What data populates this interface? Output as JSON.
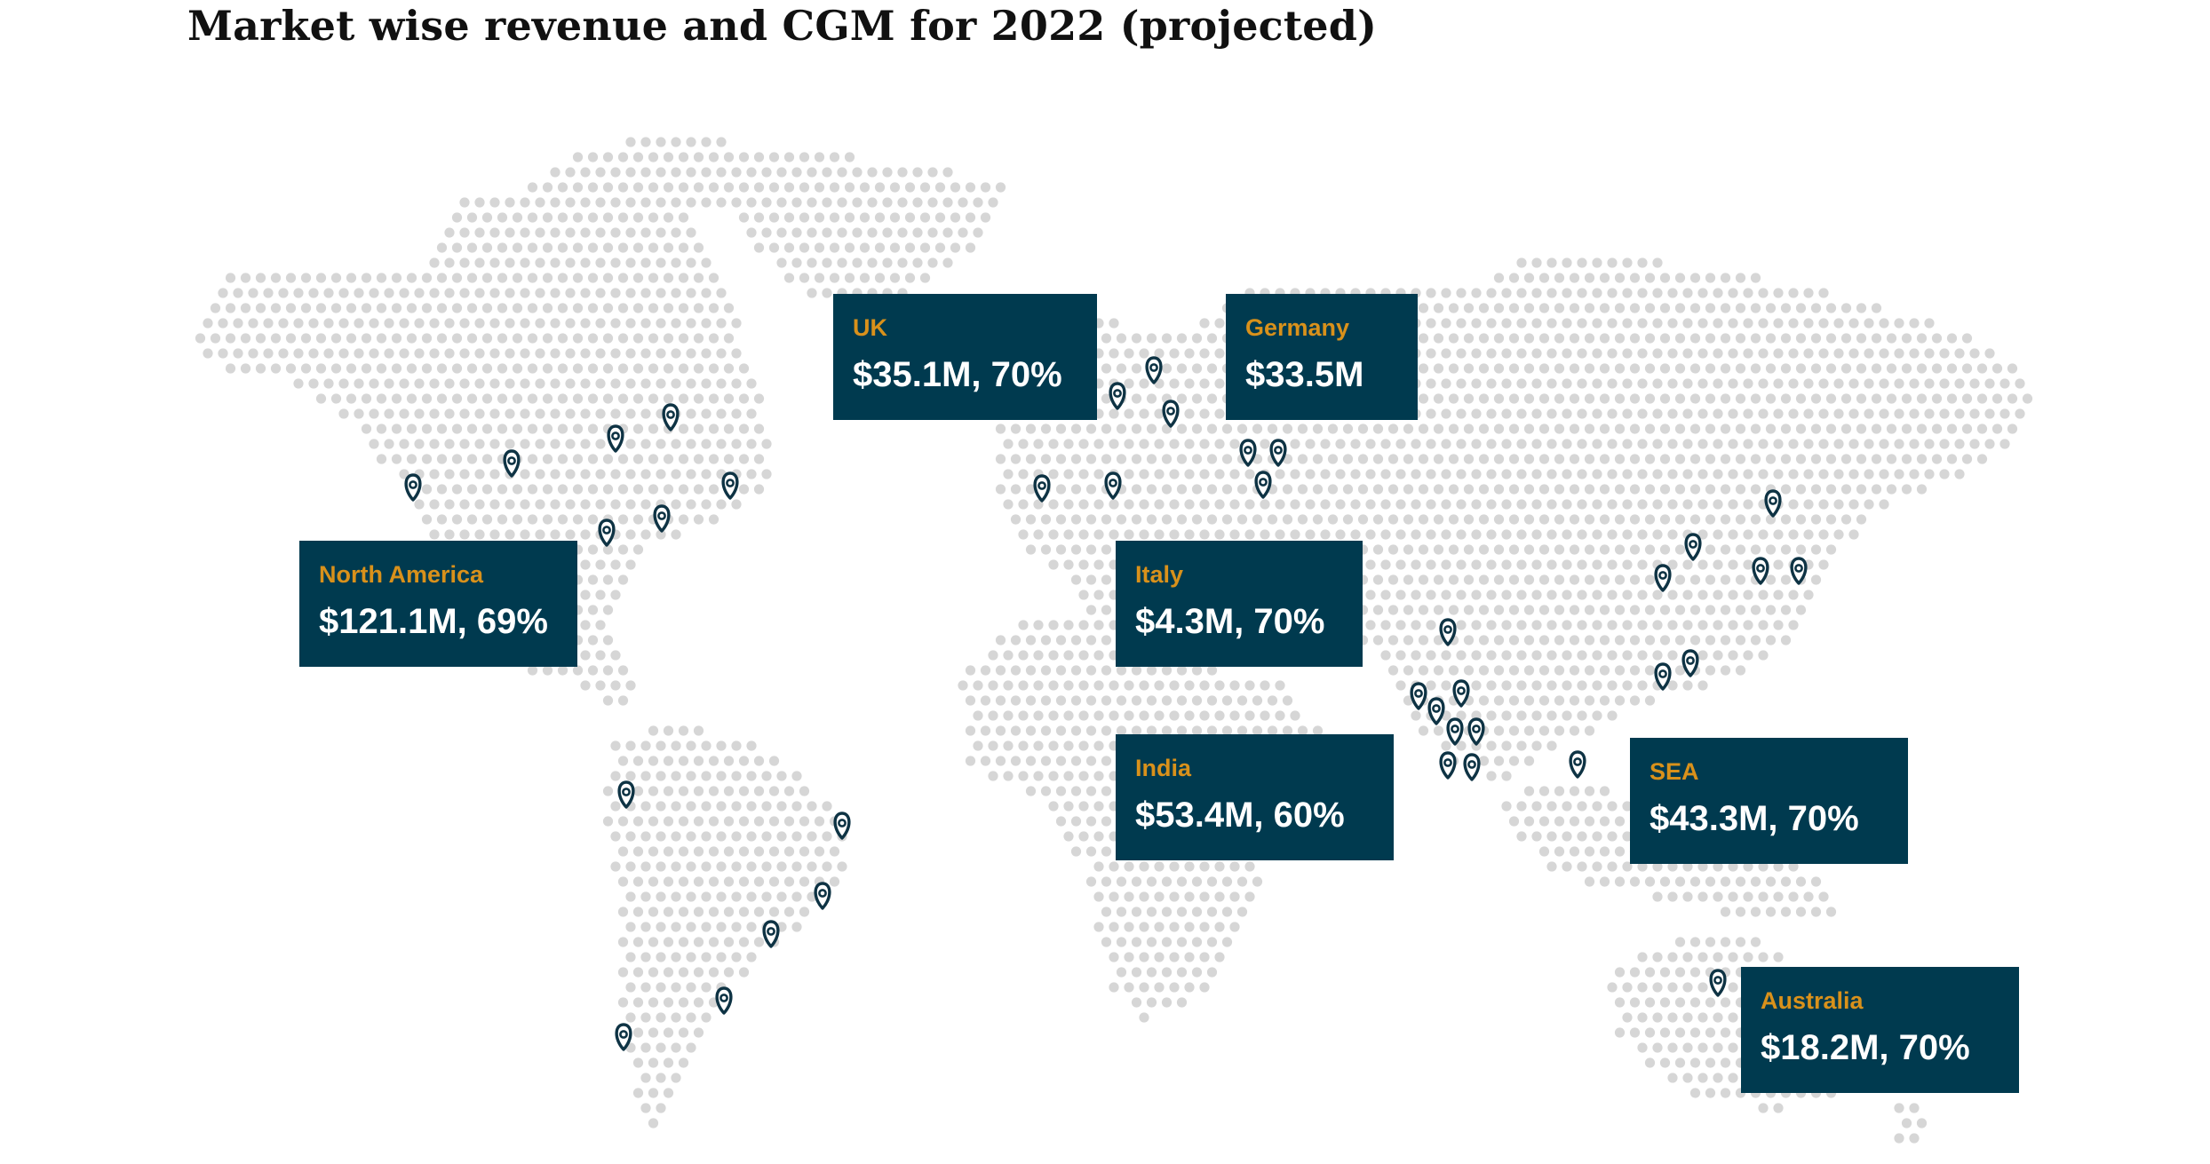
{
  "title": "Market wise revenue and CGM for 2022 (projected)",
  "colors": {
    "dots": "#d6d6d6",
    "callout_bg": "#003a4f",
    "callout_label": "#d9911b",
    "callout_value": "#ffffff",
    "pin": "#0e3344"
  },
  "icons": {
    "marker": "map-pin-icon"
  },
  "markets": [
    {
      "id": "uk",
      "name": "UK",
      "value": "$35.1M, 70%"
    },
    {
      "id": "germany",
      "name": "Germany",
      "value": "$33.5M"
    },
    {
      "id": "north-america",
      "name": "North America",
      "value": "$121.1M, 69%"
    },
    {
      "id": "italy",
      "name": "Italy",
      "value": "$4.3M, 70%"
    },
    {
      "id": "india",
      "name": "India",
      "value": "$53.4M, 60%"
    },
    {
      "id": "sea",
      "name": "SEA",
      "value": "$43.3M, 70%"
    },
    {
      "id": "australia",
      "name": "Australia",
      "value": "$18.2M, 70%"
    }
  ]
}
